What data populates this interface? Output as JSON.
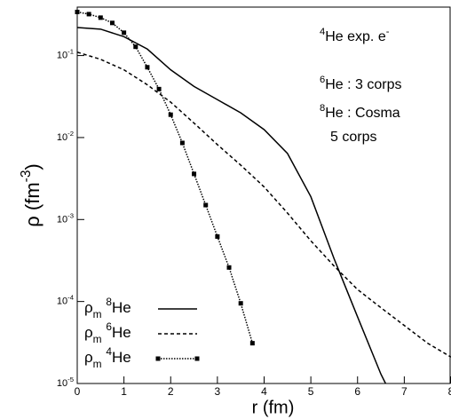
{
  "chart_data": {
    "type": "line",
    "log_y": true,
    "xlabel": "r (fm)",
    "ylabel": [
      {
        "text": "ρ (fm"
      },
      {
        "text": "-3",
        "style": "sup"
      },
      {
        "text": ")"
      }
    ],
    "xlim": [
      0,
      8
    ],
    "ylim": [
      1e-05,
      0.39
    ],
    "xticks": [
      0,
      1,
      2,
      3,
      4,
      5,
      6,
      7,
      8
    ],
    "yticks": [
      {
        "value": 0.1,
        "label": [
          {
            "text": "10"
          },
          {
            "text": "-1",
            "style": "sup"
          }
        ]
      },
      {
        "value": 0.01,
        "label": [
          {
            "text": "10"
          },
          {
            "text": "-2",
            "style": "sup"
          }
        ]
      },
      {
        "value": 0.001,
        "label": [
          {
            "text": "10"
          },
          {
            "text": "-3",
            "style": "sup"
          }
        ]
      },
      {
        "value": 0.0001,
        "label": [
          {
            "text": "10"
          },
          {
            "text": "-4",
            "style": "sup"
          }
        ]
      },
      {
        "value": 1e-05,
        "label": [
          {
            "text": "10"
          },
          {
            "text": "-5",
            "style": "sup"
          }
        ]
      }
    ],
    "annotations": [
      [
        {
          "text": "4",
          "style": "sup"
        },
        {
          "text": "He exp. e"
        },
        {
          "text": "-",
          "style": "sup"
        }
      ],
      [
        {
          "text": "6",
          "style": "sup"
        },
        {
          "text": "He : 3 corps"
        }
      ],
      [
        {
          "text": "8",
          "style": "sup"
        },
        {
          "text": "He : Cosma"
        }
      ],
      [
        {
          "text": "5 corps"
        }
      ]
    ],
    "legend": "lower left",
    "series": [
      {
        "name": [
          {
            "text": "ρ"
          },
          {
            "text": "m",
            "style": "sub"
          },
          {
            "text": " "
          },
          {
            "text": "8",
            "style": "sup"
          },
          {
            "text": "He"
          }
        ],
        "color": "#000",
        "dash": "solid",
        "marker": false,
        "x": [
          0,
          0.5,
          1,
          1.5,
          2,
          2.5,
          3,
          3.5,
          4,
          4.5,
          5,
          5.5,
          6,
          6.5,
          6.6
        ],
        "values": [
          0.22,
          0.21,
          0.17,
          0.12,
          0.067,
          0.042,
          0.029,
          0.02,
          0.0125,
          0.0064,
          0.0019,
          0.00033,
          6.5e-05,
          1.3e-05,
          1e-05
        ]
      },
      {
        "name": [
          {
            "text": "ρ"
          },
          {
            "text": "m",
            "style": "sub"
          },
          {
            "text": " "
          },
          {
            "text": "6",
            "style": "sup"
          },
          {
            "text": "He"
          }
        ],
        "color": "#000",
        "dash": "dashed",
        "marker": false,
        "x": [
          0,
          0.5,
          1,
          1.5,
          2,
          2.5,
          3,
          3.5,
          4,
          4.5,
          5,
          5.5,
          6,
          6.5,
          7,
          7.5,
          8
        ],
        "values": [
          0.11,
          0.09,
          0.067,
          0.044,
          0.027,
          0.015,
          0.0082,
          0.0046,
          0.0025,
          0.0012,
          0.00055,
          0.00027,
          0.00014,
          8.4e-05,
          5.1e-05,
          3.1e-05,
          2.1e-05
        ]
      },
      {
        "name": [
          {
            "text": "ρ"
          },
          {
            "text": "m",
            "style": "sub"
          },
          {
            "text": " "
          },
          {
            "text": "4",
            "style": "sup"
          },
          {
            "text": "He"
          }
        ],
        "color": "#000",
        "dash": "dotted",
        "marker": true,
        "x": [
          0,
          0.25,
          0.5,
          0.75,
          1,
          1.25,
          1.5,
          1.75,
          2,
          2.25,
          2.5,
          2.75,
          3,
          3.25,
          3.5,
          3.75
        ],
        "values": [
          0.34,
          0.32,
          0.29,
          0.25,
          0.19,
          0.128,
          0.072,
          0.039,
          0.019,
          0.0086,
          0.0036,
          0.0015,
          0.00062,
          0.00026,
          9.5e-05,
          3.1e-05
        ]
      }
    ]
  }
}
